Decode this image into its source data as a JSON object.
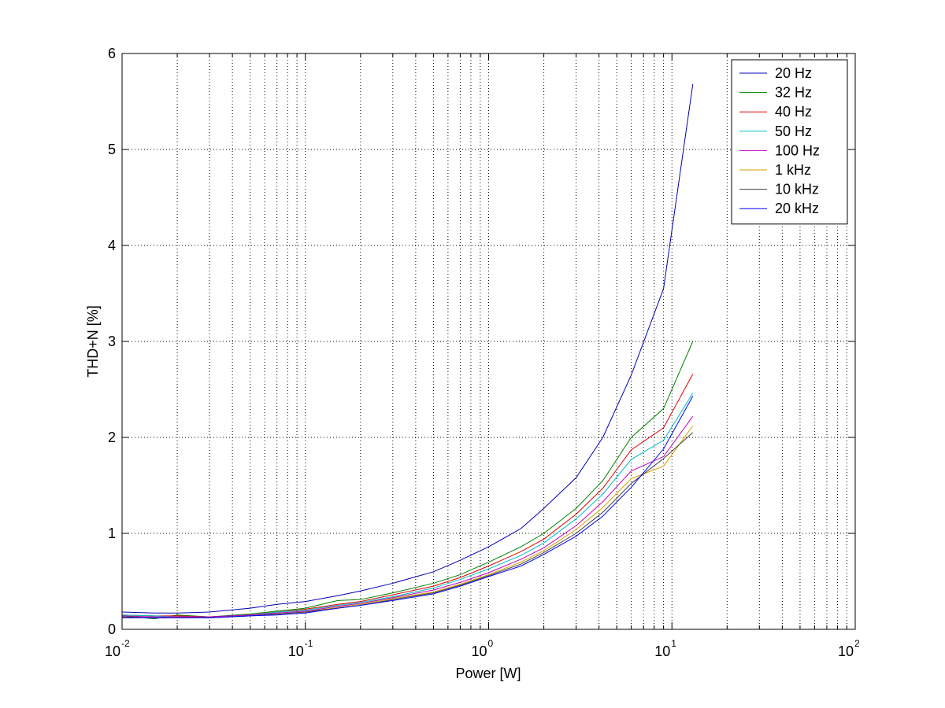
{
  "chart_data": {
    "type": "line",
    "title": "",
    "xlabel": "Power [W]",
    "ylabel": "THD+N [%]",
    "x_scale": "log",
    "xlim": [
      0.01,
      100
    ],
    "ylim": [
      0,
      6
    ],
    "x_ticks": [
      {
        "base": "10",
        "exp": "-2",
        "value": 0.01
      },
      {
        "base": "10",
        "exp": "-1",
        "value": 0.1
      },
      {
        "base": "10",
        "exp": "0",
        "value": 1
      },
      {
        "base": "10",
        "exp": "1",
        "value": 10
      },
      {
        "base": "10",
        "exp": "2",
        "value": 100
      }
    ],
    "y_ticks": [
      "0",
      "1",
      "2",
      "3",
      "4",
      "5",
      "6"
    ],
    "grid": true,
    "legend_position": "top-right",
    "x": [
      0.01,
      0.015,
      0.02,
      0.03,
      0.05,
      0.07,
      0.1,
      0.15,
      0.2,
      0.3,
      0.5,
      0.7,
      1.0,
      1.5,
      2.0,
      3.0,
      4.2,
      6.0,
      9.0,
      13.0
    ],
    "series": [
      {
        "name": "20 Hz",
        "color": "#0000b3",
        "values": [
          0.18,
          0.17,
          0.17,
          0.18,
          0.22,
          0.26,
          0.29,
          0.35,
          0.4,
          0.48,
          0.6,
          0.72,
          0.86,
          1.05,
          1.26,
          1.58,
          2.0,
          2.65,
          3.55,
          5.68
        ]
      },
      {
        "name": "32 Hz",
        "color": "#008000",
        "values": [
          0.14,
          0.11,
          0.15,
          0.13,
          0.16,
          0.19,
          0.22,
          0.3,
          0.31,
          0.38,
          0.48,
          0.57,
          0.7,
          0.86,
          1.0,
          1.26,
          1.55,
          2.0,
          2.3,
          3.0
        ]
      },
      {
        "name": "40 Hz",
        "color": "#e00000",
        "values": [
          0.15,
          0.14,
          0.14,
          0.13,
          0.15,
          0.18,
          0.21,
          0.26,
          0.29,
          0.36,
          0.45,
          0.54,
          0.66,
          0.81,
          0.94,
          1.2,
          1.47,
          1.87,
          2.1,
          2.66
        ]
      },
      {
        "name": "50 Hz",
        "color": "#00bfbf",
        "values": [
          0.15,
          0.14,
          0.13,
          0.13,
          0.15,
          0.18,
          0.2,
          0.25,
          0.28,
          0.34,
          0.43,
          0.52,
          0.63,
          0.77,
          0.9,
          1.15,
          1.41,
          1.77,
          1.97,
          2.46
        ]
      },
      {
        "name": "100 Hz",
        "color": "#bf00bf",
        "values": [
          0.14,
          0.13,
          0.13,
          0.13,
          0.15,
          0.17,
          0.19,
          0.24,
          0.27,
          0.33,
          0.41,
          0.49,
          0.59,
          0.73,
          0.85,
          1.08,
          1.33,
          1.65,
          1.8,
          2.22
        ]
      },
      {
        "name": "1 kHz",
        "color": "#d4a000",
        "values": [
          0.13,
          0.12,
          0.12,
          0.12,
          0.14,
          0.16,
          0.18,
          0.23,
          0.26,
          0.32,
          0.39,
          0.47,
          0.57,
          0.7,
          0.82,
          1.04,
          1.27,
          1.57,
          1.7,
          2.12
        ]
      },
      {
        "name": "10 kHz",
        "color": "#404040",
        "values": [
          0.13,
          0.12,
          0.12,
          0.12,
          0.14,
          0.16,
          0.18,
          0.22,
          0.25,
          0.31,
          0.38,
          0.46,
          0.56,
          0.68,
          0.8,
          1.0,
          1.22,
          1.52,
          1.78,
          2.05
        ]
      },
      {
        "name": "20 kHz",
        "color": "#0000ff",
        "values": [
          0.12,
          0.12,
          0.12,
          0.12,
          0.14,
          0.15,
          0.17,
          0.22,
          0.25,
          0.3,
          0.37,
          0.45,
          0.55,
          0.66,
          0.78,
          0.97,
          1.18,
          1.48,
          1.88,
          2.43
        ]
      }
    ]
  }
}
